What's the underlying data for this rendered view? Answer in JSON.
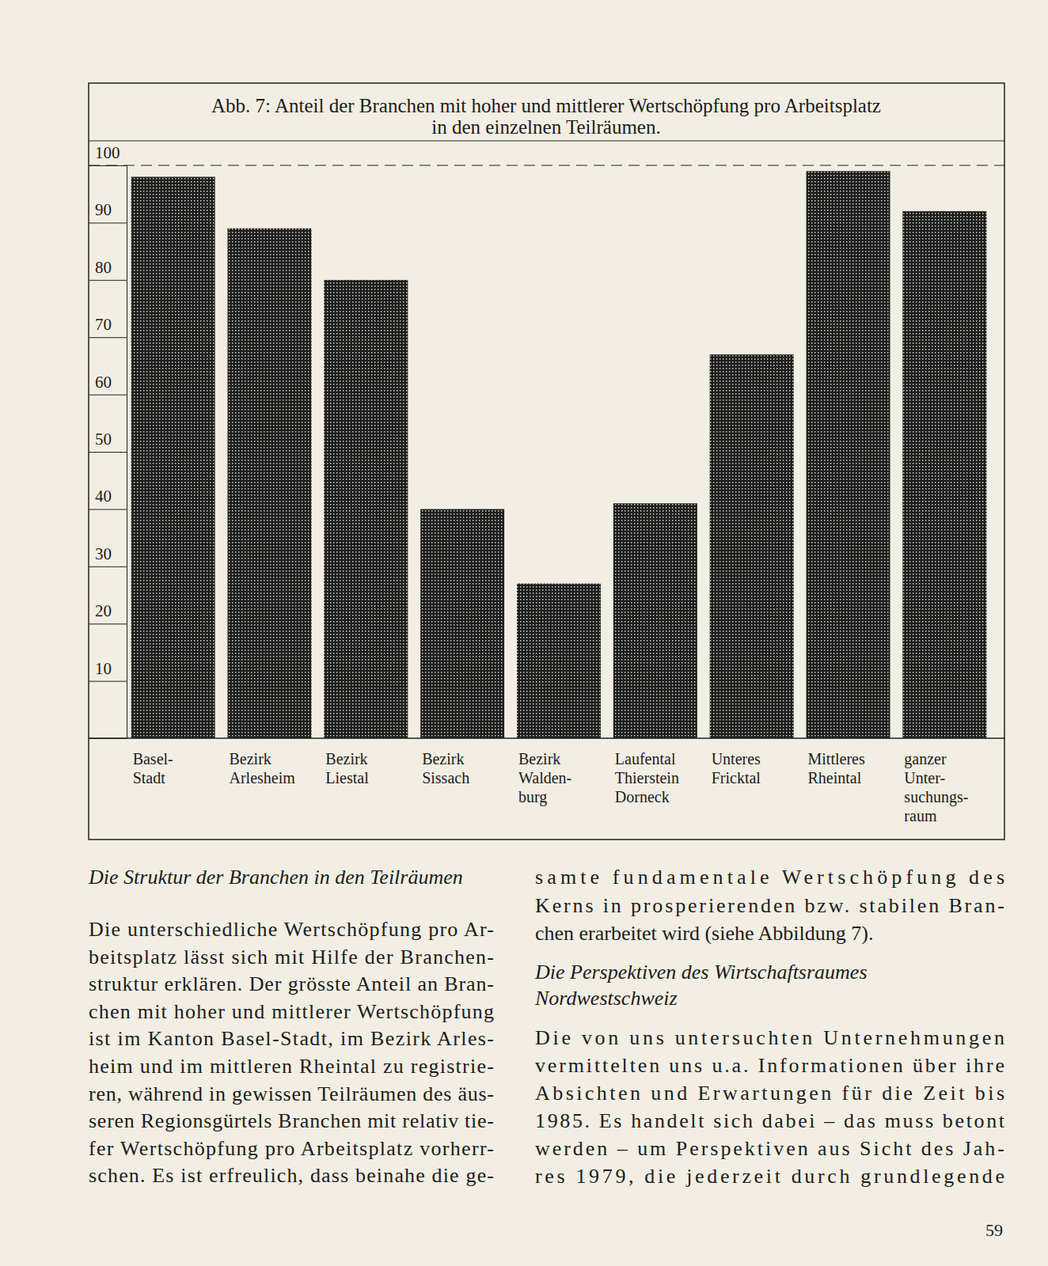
{
  "chart_data": {
    "type": "bar",
    "title": "Abb. 7: Anteil der Branchen mit hoher und mittlerer Wertschöpfung pro Arbeitsplatz\nin den einzelnen Teilräumen.",
    "categories": [
      "Basel-\nStadt",
      "Bezirk\nArlesheim",
      "Bezirk\nLiestal",
      "Bezirk\nSissach",
      "Bezirk\nWalden-\nburg",
      "Laufental\nThierstein\nDorneck",
      "Unteres\nFricktal",
      "Mittleres\nRheintal",
      "ganzer\nUnter-\nsuchungs-\nraum"
    ],
    "values": [
      98,
      89,
      80,
      40,
      27,
      41,
      67,
      99,
      92
    ],
    "color": "#1e1e1e",
    "ylim": [
      0,
      100
    ],
    "yticks": [
      10,
      20,
      30,
      40,
      50,
      60,
      70,
      80,
      90,
      100
    ],
    "grid": false
  },
  "page": {
    "left_heading": "Die Struktur der Branchen in den Teilräumen",
    "left_paragraph": [
      "Die unterschiedliche Wertschöpfung pro Ar-",
      "beitsplatz lässt sich mit Hilfe der Branchen-",
      "struktur erklären. Der grösste Anteil an Bran-",
      "chen mit hoher und mittlerer Wertschöpfung",
      "ist im Kanton Basel-Stadt, im Bezirk Arles-",
      "heim und im mittleren Rheintal zu registrie-",
      "ren, während in gewissen Teilräumen des äus-",
      "seren Regionsgürtels Branchen mit relativ tie-",
      "fer Wertschöpfung pro Arbeitsplatz vorherr-",
      "schen. Es ist erfreulich, dass beinahe die ge-"
    ],
    "right_paragraph_end": [
      "samte fundamentale Wertschöpfung des",
      "Kerns in prosperierenden bzw. stabilen Bran-",
      "chen erarbeitet wird (siehe Abbildung 7)."
    ],
    "right_heading": [
      "Die Perspektiven des Wirtschaftsraumes",
      "Nordwestschweiz"
    ],
    "right_paragraph": [
      "Die von uns untersuchten Unternehmungen",
      "vermittelten uns u.a. Informationen über ihre",
      "Absichten und Erwartungen für die Zeit bis",
      "1985. Es handelt sich dabei – das muss betont",
      "werden – um Perspektiven aus Sicht des Jah-",
      "res 1979, die jederzeit durch grundlegende"
    ],
    "page_number": "59"
  }
}
